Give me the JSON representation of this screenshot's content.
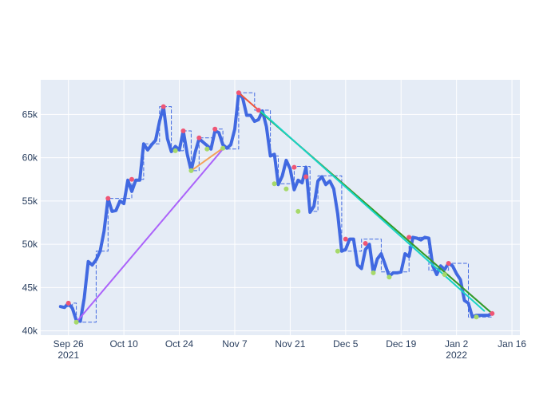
{
  "chart_data": {
    "type": "line",
    "title": "",
    "xlabel": "",
    "ylabel": "",
    "xlim": [
      "2021-09-19",
      "2022-01-18"
    ],
    "ylim": [
      39500,
      69000
    ],
    "grid": true,
    "legend": "none",
    "x_ticks": [
      {
        "date": "2021-09-26",
        "label": "Sep 26",
        "sublabel": "2021"
      },
      {
        "date": "2021-10-10",
        "label": "Oct 10",
        "sublabel": ""
      },
      {
        "date": "2021-10-24",
        "label": "Oct 24",
        "sublabel": ""
      },
      {
        "date": "2021-11-07",
        "label": "Nov 7",
        "sublabel": ""
      },
      {
        "date": "2021-11-21",
        "label": "Nov 21",
        "sublabel": ""
      },
      {
        "date": "2021-12-05",
        "label": "Dec 5",
        "sublabel": ""
      },
      {
        "date": "2021-12-19",
        "label": "Dec 19",
        "sublabel": ""
      },
      {
        "date": "2022-01-02",
        "label": "Jan 2",
        "sublabel": "2022"
      },
      {
        "date": "2022-01-16",
        "label": "Jan 16",
        "sublabel": ""
      }
    ],
    "y_ticks": [
      {
        "value": 40000,
        "label": "40k"
      },
      {
        "value": 45000,
        "label": "45k"
      },
      {
        "value": 50000,
        "label": "50k"
      },
      {
        "value": 55000,
        "label": "55k"
      },
      {
        "value": 60000,
        "label": "60k"
      },
      {
        "value": 65000,
        "label": "65k"
      }
    ],
    "series": [
      {
        "role": "price",
        "style": "solid-thick",
        "color": "#4169e1",
        "x": [
          "2021-09-24",
          "2021-09-25",
          "2021-09-26",
          "2021-09-27",
          "2021-09-28",
          "2021-09-29",
          "2021-09-30",
          "2021-10-01",
          "2021-10-02",
          "2021-10-03",
          "2021-10-04",
          "2021-10-05",
          "2021-10-06",
          "2021-10-07",
          "2021-10-08",
          "2021-10-09",
          "2021-10-10",
          "2021-10-11",
          "2021-10-12",
          "2021-10-13",
          "2021-10-14",
          "2021-10-15",
          "2021-10-16",
          "2021-10-17",
          "2021-10-18",
          "2021-10-19",
          "2021-10-20",
          "2021-10-21",
          "2021-10-22",
          "2021-10-23",
          "2021-10-24",
          "2021-10-25",
          "2021-10-26",
          "2021-10-27",
          "2021-10-28",
          "2021-10-29",
          "2021-10-30",
          "2021-10-31",
          "2021-11-01",
          "2021-11-02",
          "2021-11-03",
          "2021-11-04",
          "2021-11-05",
          "2021-11-06",
          "2021-11-07",
          "2021-11-08",
          "2021-11-09",
          "2021-11-10",
          "2021-11-11",
          "2021-11-12",
          "2021-11-13",
          "2021-11-14",
          "2021-11-15",
          "2021-11-16",
          "2021-11-17",
          "2021-11-18",
          "2021-11-19",
          "2021-11-20",
          "2021-11-21",
          "2021-11-22",
          "2021-11-23",
          "2021-11-24",
          "2021-11-25",
          "2021-11-26",
          "2021-11-27",
          "2021-11-28",
          "2021-11-29",
          "2021-11-30",
          "2021-12-01",
          "2021-12-02",
          "2021-12-03",
          "2021-12-04",
          "2021-12-05",
          "2021-12-06",
          "2021-12-07",
          "2021-12-08",
          "2021-12-09",
          "2021-12-10",
          "2021-12-11",
          "2021-12-12",
          "2021-12-13",
          "2021-12-14",
          "2021-12-15",
          "2021-12-16",
          "2021-12-17",
          "2021-12-18",
          "2021-12-19",
          "2021-12-20",
          "2021-12-21",
          "2021-12-22",
          "2021-12-23",
          "2021-12-24",
          "2021-12-25",
          "2021-12-26",
          "2021-12-27",
          "2021-12-28",
          "2021-12-29",
          "2021-12-30",
          "2021-12-31",
          "2022-01-01",
          "2022-01-02",
          "2022-01-03",
          "2022-01-04",
          "2022-01-05",
          "2022-01-06",
          "2022-01-07",
          "2022-01-08",
          "2022-01-09",
          "2022-01-10",
          "2022-01-11"
        ],
        "y": [
          42800,
          42700,
          43200,
          42600,
          41200,
          41100,
          43800,
          48000,
          47600,
          48200,
          49200,
          51500,
          55300,
          53800,
          53900,
          55000,
          54700,
          57400,
          56100,
          57400,
          57400,
          61600,
          60900,
          61500,
          62000,
          64200,
          65900,
          62200,
          60700,
          61300,
          60900,
          63100,
          60400,
          58500,
          60600,
          62200,
          61800,
          61400,
          61000,
          63100,
          62900,
          61500,
          61100,
          61500,
          63300,
          67500,
          66900,
          64900,
          64900,
          64200,
          64400,
          65400,
          63600,
          60200,
          60400,
          56900,
          57900,
          59700,
          58700,
          56300,
          57400,
          57100,
          58900,
          53700,
          54400,
          57300,
          57800,
          56900,
          57300,
          56400,
          53500,
          49200,
          49400,
          50600,
          50600,
          47600,
          47200,
          49400,
          50000,
          46700,
          48300,
          48900,
          47600,
          46300,
          46700,
          46700,
          46800,
          48900,
          48600,
          50800,
          50700,
          50500,
          50800,
          50700,
          47500,
          46500,
          47500,
          47100,
          47800,
          47500,
          46600,
          45900,
          43500,
          43200,
          41600,
          41800,
          41800,
          41800,
          41800,
          42000
        ]
      },
      {
        "role": "step",
        "style": "dashed-thin",
        "color": "#4169e1",
        "x": [
          "2021-09-24",
          "2021-09-27",
          "2021-09-27",
          "2021-09-28",
          "2021-09-28",
          "2021-10-03",
          "2021-10-03",
          "2021-10-06",
          "2021-10-06",
          "2021-10-12",
          "2021-10-12",
          "2021-10-15",
          "2021-10-15",
          "2021-10-19",
          "2021-10-19",
          "2021-10-22",
          "2021-10-22",
          "2021-10-25",
          "2021-10-25",
          "2021-10-27",
          "2021-10-27",
          "2021-10-29",
          "2021-10-29",
          "2021-11-02",
          "2021-11-02",
          "2021-11-04",
          "2021-11-04",
          "2021-11-08",
          "2021-11-08",
          "2021-11-12",
          "2021-11-12",
          "2021-11-16",
          "2021-11-16",
          "2021-11-18",
          "2021-11-18",
          "2021-11-22",
          "2021-11-22",
          "2021-11-26",
          "2021-11-26",
          "2021-11-28",
          "2021-11-28",
          "2021-12-04",
          "2021-12-04",
          "2021-12-09",
          "2021-12-09",
          "2021-12-14",
          "2021-12-14",
          "2021-12-21",
          "2021-12-21",
          "2021-12-26",
          "2021-12-26",
          "2021-12-31",
          "2021-12-31",
          "2022-01-05",
          "2022-01-05",
          "2022-01-11"
        ],
        "y": [
          42800,
          42800,
          43200,
          43200,
          41000,
          41000,
          49200,
          49200,
          55300,
          55300,
          57500,
          57500,
          61600,
          61600,
          65900,
          65900,
          60800,
          60800,
          63100,
          63100,
          58500,
          58500,
          62300,
          62300,
          63300,
          63300,
          61000,
          61000,
          67500,
          67500,
          65500,
          65500,
          60200,
          60200,
          57000,
          57000,
          59000,
          59000,
          53800,
          53800,
          57900,
          57900,
          49200,
          49200,
          50600,
          50600,
          46800,
          46800,
          50800,
          50800,
          47000,
          47000,
          47800,
          47800,
          41600,
          41600
        ]
      },
      {
        "role": "peaks",
        "style": "markers",
        "color": "#ef5675",
        "x": [
          "2021-09-26",
          "2021-10-06",
          "2021-10-12",
          "2021-10-20",
          "2021-10-25",
          "2021-10-29",
          "2021-11-02",
          "2021-11-08",
          "2021-11-13",
          "2021-11-22",
          "2021-11-25",
          "2021-12-05",
          "2021-12-10",
          "2021-12-21",
          "2021-12-31",
          "2022-01-11"
        ],
        "y": [
          43200,
          55300,
          57500,
          65900,
          63100,
          62300,
          63300,
          67500,
          65500,
          58900,
          57800,
          50600,
          50100,
          50800,
          47800,
          42000
        ]
      },
      {
        "role": "troughs",
        "style": "markers",
        "color": "#a6d96a",
        "x": [
          "2021-09-28",
          "2021-10-23",
          "2021-10-27",
          "2021-10-31",
          "2021-11-04",
          "2021-11-17",
          "2021-11-20",
          "2021-11-23",
          "2021-12-03",
          "2021-12-12",
          "2021-12-16",
          "2021-12-30",
          "2022-01-07"
        ],
        "y": [
          41000,
          60800,
          58500,
          61000,
          61100,
          57000,
          56400,
          53800,
          49200,
          46700,
          46200,
          46500,
          41600
        ]
      },
      {
        "role": "trendline",
        "style": "solid",
        "color": "#ab63fa",
        "x": [
          "2021-09-28",
          "2021-11-04"
        ],
        "y": [
          41000,
          61000
        ]
      },
      {
        "role": "trendline",
        "style": "solid",
        "color": "#f3a25b",
        "x": [
          "2021-10-27",
          "2021-11-04"
        ],
        "y": [
          58500,
          61100
        ]
      },
      {
        "role": "trendline",
        "style": "solid",
        "color": "#ef553b",
        "x": [
          "2021-11-08",
          "2022-01-11"
        ],
        "y": [
          67500,
          42000
        ]
      },
      {
        "role": "trendline",
        "style": "solid",
        "color": "#2ca02c",
        "x": [
          "2021-11-13",
          "2022-01-11"
        ],
        "y": [
          65500,
          42000
        ]
      },
      {
        "role": "trendline",
        "style": "solid",
        "color": "#19d3c5",
        "x": [
          "2021-11-13",
          "2022-01-09"
        ],
        "y": [
          65600,
          42300
        ]
      }
    ]
  }
}
